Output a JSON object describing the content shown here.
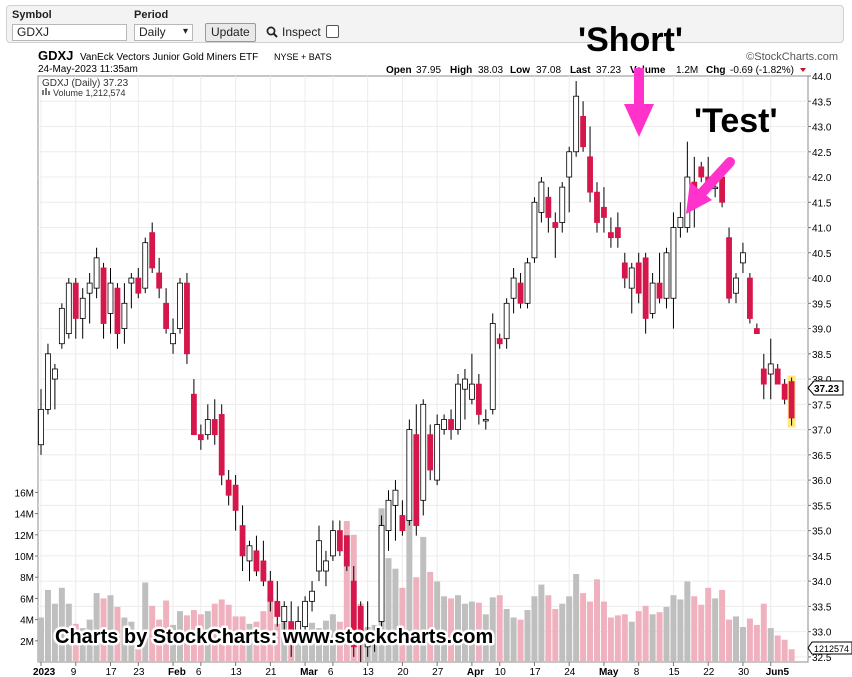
{
  "toolbar": {
    "symbol_label": "Symbol",
    "symbol_value": "GDXJ",
    "period_label": "Period",
    "period_value": "Daily",
    "update_label": "Update",
    "inspect_label": "Inspect"
  },
  "header": {
    "ticker": "GDXJ",
    "name": "VanEck Vectors Junior Gold Miners ETF",
    "exchange": "NYSE + BATS",
    "timestamp": "24-May-2023 11:35am",
    "brand": "©StockCharts.com",
    "open_label": "Open",
    "open": "37.95",
    "high_label": "High",
    "high": "38.03",
    "low_label": "Low",
    "low": "37.08",
    "last_label": "Last",
    "last": "37.23",
    "volume_label": "Volume",
    "volume": "1.2M",
    "chg_label": "Chg",
    "chg": "-0.69 (-1.82%)",
    "legend_price": "GDXJ (Daily) 37.23",
    "legend_volume": "Volume 1,212,574"
  },
  "annotations": {
    "short": "'Short'",
    "test": "'Test'",
    "credit": "Charts by StockCharts: www.stockcharts.com"
  },
  "colors": {
    "up": "#ffffff",
    "down": "#d6174b",
    "arrow": "#ff33cc",
    "vol_up": "#bfbfbf",
    "vol_down": "#f0b1bf",
    "last_highlight": "#ffe97a"
  },
  "chart_data": {
    "type": "candlestick",
    "y_axis": {
      "range": [
        32.3,
        44.0
      ],
      "ticks": [
        "44.0",
        "43.5",
        "43.0",
        "42.5",
        "42.0",
        "41.5",
        "41.0",
        "40.5",
        "40.0",
        "39.5",
        "39.0",
        "38.5",
        "38.0",
        "37.5",
        "37.0",
        "36.5",
        "36.0",
        "35.5",
        "35.0",
        "34.5",
        "34.0",
        "33.5",
        "33.0",
        "32.5"
      ],
      "last_price_label": "37.23",
      "position": "right"
    },
    "volume_axis": {
      "range": [
        0,
        17000000
      ],
      "ticks": [
        "16M",
        "14M",
        "12M",
        "10M",
        "8M",
        "6M",
        "4M",
        "2M"
      ],
      "last_volume_label": "1212574",
      "position": "left"
    },
    "x_axis_labels": [
      {
        "label": "2023",
        "i": 0
      },
      {
        "label": "9",
        "i": 5
      },
      {
        "label": "17",
        "i": 10
      },
      {
        "label": "23",
        "i": 14
      },
      {
        "label": "Feb",
        "i": 19
      },
      {
        "label": "6",
        "i": 23
      },
      {
        "label": "13",
        "i": 28
      },
      {
        "label": "21",
        "i": 33
      },
      {
        "label": "Mar",
        "i": 38
      },
      {
        "label": "6",
        "i": 42
      },
      {
        "label": "13",
        "i": 47
      },
      {
        "label": "20",
        "i": 52
      },
      {
        "label": "27",
        "i": 57
      },
      {
        "label": "Apr",
        "i": 62
      },
      {
        "label": "10",
        "i": 66
      },
      {
        "label": "17",
        "i": 71
      },
      {
        "label": "24",
        "i": 76
      },
      {
        "label": "May",
        "i": 81
      },
      {
        "label": "8",
        "i": 86
      },
      {
        "label": "15",
        "i": 91
      },
      {
        "label": "22",
        "i": 96
      },
      {
        "label": "30",
        "i": 101
      },
      {
        "label": "Jun5",
        "i": 105
      }
    ],
    "candles": [
      {
        "o": 36.7,
        "h": 37.8,
        "l": 36.5,
        "c": 37.4,
        "v": 4.2
      },
      {
        "o": 37.4,
        "h": 38.7,
        "l": 37.3,
        "c": 38.5,
        "v": 6.8
      },
      {
        "o": 38.0,
        "h": 38.3,
        "l": 37.4,
        "c": 38.2,
        "v": 5.5
      },
      {
        "o": 38.7,
        "h": 39.5,
        "l": 38.6,
        "c": 39.4,
        "v": 7.0
      },
      {
        "o": 38.9,
        "h": 40.0,
        "l": 38.8,
        "c": 39.9,
        "v": 5.5
      },
      {
        "o": 39.9,
        "h": 40.0,
        "l": 38.8,
        "c": 39.2,
        "v": 3.6
      },
      {
        "o": 39.2,
        "h": 39.8,
        "l": 38.8,
        "c": 39.6,
        "v": 3.2
      },
      {
        "o": 39.7,
        "h": 40.1,
        "l": 39.1,
        "c": 39.9,
        "v": 4.0
      },
      {
        "o": 39.8,
        "h": 40.6,
        "l": 39.6,
        "c": 40.4,
        "v": 6.5
      },
      {
        "o": 40.2,
        "h": 40.3,
        "l": 38.8,
        "c": 39.1,
        "v": 6.0
      },
      {
        "o": 39.3,
        "h": 40.2,
        "l": 38.9,
        "c": 39.9,
        "v": 6.3
      },
      {
        "o": 39.8,
        "h": 39.9,
        "l": 38.6,
        "c": 38.9,
        "v": 5.2
      },
      {
        "o": 39.0,
        "h": 39.9,
        "l": 38.7,
        "c": 39.5,
        "v": 4.2
      },
      {
        "o": 39.9,
        "h": 40.1,
        "l": 39.4,
        "c": 40.0,
        "v": 3.8
      },
      {
        "o": 40.0,
        "h": 40.2,
        "l": 39.6,
        "c": 39.7,
        "v": 3.0
      },
      {
        "o": 39.8,
        "h": 40.8,
        "l": 39.7,
        "c": 40.7,
        "v": 7.5
      },
      {
        "o": 40.9,
        "h": 41.1,
        "l": 40.1,
        "c": 40.2,
        "v": 5.3
      },
      {
        "o": 40.1,
        "h": 40.4,
        "l": 39.6,
        "c": 39.8,
        "v": 4.0
      },
      {
        "o": 39.5,
        "h": 39.8,
        "l": 38.9,
        "c": 39.0,
        "v": 5.8
      },
      {
        "o": 38.7,
        "h": 39.2,
        "l": 38.5,
        "c": 38.9,
        "v": 3.5
      },
      {
        "o": 39.0,
        "h": 40.0,
        "l": 38.9,
        "c": 39.9,
        "v": 4.8
      },
      {
        "o": 39.9,
        "h": 40.1,
        "l": 38.3,
        "c": 38.5,
        "v": 4.4
      },
      {
        "o": 37.7,
        "h": 38.0,
        "l": 36.9,
        "c": 36.9,
        "v": 4.9
      },
      {
        "o": 36.9,
        "h": 37.1,
        "l": 36.6,
        "c": 36.8,
        "v": 4.5
      },
      {
        "o": 36.9,
        "h": 37.5,
        "l": 36.8,
        "c": 37.2,
        "v": 4.8
      },
      {
        "o": 37.2,
        "h": 37.6,
        "l": 36.7,
        "c": 36.9,
        "v": 5.5
      },
      {
        "o": 37.3,
        "h": 37.5,
        "l": 35.9,
        "c": 36.1,
        "v": 5.9
      },
      {
        "o": 36.0,
        "h": 36.2,
        "l": 35.5,
        "c": 35.7,
        "v": 5.4
      },
      {
        "o": 35.9,
        "h": 36.1,
        "l": 35.0,
        "c": 35.4,
        "v": 4.3
      },
      {
        "o": 35.1,
        "h": 35.5,
        "l": 34.2,
        "c": 34.5,
        "v": 4.3
      },
      {
        "o": 34.4,
        "h": 34.8,
        "l": 34.0,
        "c": 34.7,
        "v": 3.6
      },
      {
        "o": 34.6,
        "h": 34.9,
        "l": 34.1,
        "c": 34.2,
        "v": 3.8
      },
      {
        "o": 34.4,
        "h": 34.8,
        "l": 33.9,
        "c": 34.0,
        "v": 4.8
      },
      {
        "o": 34.0,
        "h": 34.2,
        "l": 33.4,
        "c": 33.6,
        "v": 6.3
      },
      {
        "o": 33.6,
        "h": 34.0,
        "l": 33.1,
        "c": 33.3,
        "v": 3.6
      },
      {
        "o": 33.2,
        "h": 33.6,
        "l": 33.0,
        "c": 33.5,
        "v": 4.0
      },
      {
        "o": 33.2,
        "h": 33.6,
        "l": 32.5,
        "c": 33.0,
        "v": 2.6
      },
      {
        "o": 33.0,
        "h": 33.5,
        "l": 32.8,
        "c": 33.2,
        "v": 3.2
      },
      {
        "o": 33.1,
        "h": 33.7,
        "l": 32.9,
        "c": 33.6,
        "v": 2.9
      },
      {
        "o": 33.6,
        "h": 34.0,
        "l": 33.4,
        "c": 33.8,
        "v": 3.7
      },
      {
        "o": 34.2,
        "h": 35.1,
        "l": 34.0,
        "c": 34.8,
        "v": 3.2
      },
      {
        "o": 34.2,
        "h": 34.6,
        "l": 33.9,
        "c": 34.4,
        "v": 3.9
      },
      {
        "o": 34.5,
        "h": 35.2,
        "l": 34.4,
        "c": 35.0,
        "v": 4.5
      },
      {
        "o": 35.0,
        "h": 35.2,
        "l": 34.5,
        "c": 34.6,
        "v": 3.8
      },
      {
        "o": 34.9,
        "h": 34.9,
        "l": 34.2,
        "c": 34.3,
        "v": 13.3
      },
      {
        "o": 34.0,
        "h": 34.3,
        "l": 32.5,
        "c": 32.7,
        "v": 12.0
      },
      {
        "o": 33.5,
        "h": 33.6,
        "l": 32.4,
        "c": 32.8,
        "v": 5.5
      },
      {
        "o": 32.7,
        "h": 33.6,
        "l": 32.5,
        "c": 32.9,
        "v": 3.3
      },
      {
        "o": 32.9,
        "h": 33.1,
        "l": 32.6,
        "c": 33.0,
        "v": 3.5
      },
      {
        "o": 33.2,
        "h": 35.3,
        "l": 33.1,
        "c": 35.1,
        "v": 14.5
      },
      {
        "o": 35.0,
        "h": 35.8,
        "l": 34.6,
        "c": 35.6,
        "v": 9.8
      },
      {
        "o": 35.5,
        "h": 36.0,
        "l": 34.8,
        "c": 35.8,
        "v": 8.8
      },
      {
        "o": 35.3,
        "h": 35.6,
        "l": 34.9,
        "c": 35.0,
        "v": 7.0
      },
      {
        "o": 35.2,
        "h": 37.2,
        "l": 35.1,
        "c": 37.0,
        "v": 13.7
      },
      {
        "o": 36.9,
        "h": 37.5,
        "l": 34.9,
        "c": 35.1,
        "v": 8.0
      },
      {
        "o": 35.6,
        "h": 37.6,
        "l": 35.3,
        "c": 37.5,
        "v": 11.8
      },
      {
        "o": 36.9,
        "h": 37.1,
        "l": 36.0,
        "c": 36.2,
        "v": 8.5
      },
      {
        "o": 36.0,
        "h": 37.3,
        "l": 35.9,
        "c": 37.1,
        "v": 7.6
      },
      {
        "o": 37.0,
        "h": 37.3,
        "l": 36.9,
        "c": 37.2,
        "v": 6.2
      },
      {
        "o": 37.2,
        "h": 37.4,
        "l": 36.8,
        "c": 37.0,
        "v": 6.0
      },
      {
        "o": 37.0,
        "h": 38.1,
        "l": 36.9,
        "c": 37.9,
        "v": 6.3
      },
      {
        "o": 37.8,
        "h": 38.2,
        "l": 37.2,
        "c": 38.0,
        "v": 5.5
      },
      {
        "o": 37.6,
        "h": 38.5,
        "l": 37.5,
        "c": 37.9,
        "v": 5.7
      },
      {
        "o": 37.9,
        "h": 38.1,
        "l": 37.1,
        "c": 37.3,
        "v": 5.6
      },
      {
        "o": 37.2,
        "h": 37.4,
        "l": 37.0,
        "c": 37.2,
        "v": 4.5
      },
      {
        "o": 37.4,
        "h": 39.3,
        "l": 37.3,
        "c": 39.1,
        "v": 6.1
      },
      {
        "o": 38.8,
        "h": 38.9,
        "l": 38.6,
        "c": 38.7,
        "v": 6.3
      },
      {
        "o": 38.8,
        "h": 39.6,
        "l": 38.6,
        "c": 39.5,
        "v": 5.0
      },
      {
        "o": 39.6,
        "h": 40.2,
        "l": 39.3,
        "c": 40.0,
        "v": 4.2
      },
      {
        "o": 39.9,
        "h": 40.1,
        "l": 39.4,
        "c": 39.5,
        "v": 4.0
      },
      {
        "o": 39.5,
        "h": 40.4,
        "l": 39.4,
        "c": 40.3,
        "v": 4.9
      },
      {
        "o": 40.4,
        "h": 41.6,
        "l": 40.3,
        "c": 41.5,
        "v": 6.2
      },
      {
        "o": 41.3,
        "h": 42.0,
        "l": 41.1,
        "c": 41.9,
        "v": 7.3
      },
      {
        "o": 41.6,
        "h": 41.8,
        "l": 40.9,
        "c": 41.2,
        "v": 6.3
      },
      {
        "o": 41.1,
        "h": 41.3,
        "l": 40.4,
        "c": 41.0,
        "v": 5.0
      },
      {
        "o": 41.1,
        "h": 41.9,
        "l": 40.9,
        "c": 41.8,
        "v": 5.5
      },
      {
        "o": 42.0,
        "h": 42.6,
        "l": 41.3,
        "c": 42.5,
        "v": 6.2
      },
      {
        "o": 42.5,
        "h": 43.9,
        "l": 42.4,
        "c": 43.6,
        "v": 8.3
      },
      {
        "o": 43.2,
        "h": 43.5,
        "l": 42.5,
        "c": 42.6,
        "v": 6.5
      },
      {
        "o": 42.4,
        "h": 43.0,
        "l": 41.5,
        "c": 41.7,
        "v": 5.7
      },
      {
        "o": 41.7,
        "h": 41.9,
        "l": 40.9,
        "c": 41.1,
        "v": 7.8
      },
      {
        "o": 41.4,
        "h": 41.8,
        "l": 40.9,
        "c": 41.2,
        "v": 5.7
      },
      {
        "o": 40.9,
        "h": 41.2,
        "l": 40.6,
        "c": 40.8,
        "v": 4.2
      },
      {
        "o": 41.0,
        "h": 41.3,
        "l": 40.6,
        "c": 40.8,
        "v": 4.4
      },
      {
        "o": 40.3,
        "h": 40.5,
        "l": 39.8,
        "c": 40.0,
        "v": 4.5
      },
      {
        "o": 39.8,
        "h": 40.3,
        "l": 39.3,
        "c": 40.2,
        "v": 3.8
      },
      {
        "o": 40.3,
        "h": 40.5,
        "l": 39.5,
        "c": 39.7,
        "v": 4.8
      },
      {
        "o": 40.4,
        "h": 40.5,
        "l": 38.9,
        "c": 39.2,
        "v": 5.3
      },
      {
        "o": 39.3,
        "h": 40.1,
        "l": 39.2,
        "c": 39.9,
        "v": 4.5
      },
      {
        "o": 39.9,
        "h": 40.5,
        "l": 39.5,
        "c": 39.6,
        "v": 4.7
      },
      {
        "o": 39.6,
        "h": 40.6,
        "l": 39.4,
        "c": 40.5,
        "v": 5.2
      },
      {
        "o": 39.6,
        "h": 41.3,
        "l": 39.0,
        "c": 41.0,
        "v": 6.3
      },
      {
        "o": 41.0,
        "h": 41.5,
        "l": 40.8,
        "c": 41.2,
        "v": 5.9
      },
      {
        "o": 41.0,
        "h": 42.7,
        "l": 40.9,
        "c": 42.0,
        "v": 7.6
      },
      {
        "o": 41.9,
        "h": 42.4,
        "l": 41.0,
        "c": 41.5,
        "v": 6.2
      },
      {
        "o": 42.2,
        "h": 42.3,
        "l": 41.9,
        "c": 42.0,
        "v": 5.4
      },
      {
        "o": 42.0,
        "h": 42.4,
        "l": 41.8,
        "c": 41.9,
        "v": 7.0
      },
      {
        "o": 41.8,
        "h": 41.9,
        "l": 41.6,
        "c": 41.8,
        "v": 6.0
      },
      {
        "o": 42.0,
        "h": 42.1,
        "l": 41.4,
        "c": 41.5,
        "v": 6.8
      },
      {
        "o": 40.8,
        "h": 41.0,
        "l": 39.5,
        "c": 39.6,
        "v": 4.0
      },
      {
        "o": 39.7,
        "h": 40.1,
        "l": 39.5,
        "c": 40.0,
        "v": 4.3
      },
      {
        "o": 40.3,
        "h": 40.7,
        "l": 40.1,
        "c": 40.5,
        "v": 3.3
      },
      {
        "o": 40.0,
        "h": 40.1,
        "l": 39.1,
        "c": 39.2,
        "v": 4.1
      },
      {
        "o": 39.0,
        "h": 39.1,
        "l": 38.9,
        "c": 38.9,
        "v": 3.5
      },
      {
        "o": 38.2,
        "h": 38.5,
        "l": 37.6,
        "c": 37.9,
        "v": 5.5
      },
      {
        "o": 38.1,
        "h": 38.8,
        "l": 37.6,
        "c": 38.3,
        "v": 3.2
      },
      {
        "o": 38.2,
        "h": 38.3,
        "l": 37.9,
        "c": 37.9,
        "v": 2.5
      },
      {
        "o": 37.9,
        "h": 38.0,
        "l": 37.5,
        "c": 37.6,
        "v": 2.1
      },
      {
        "o": 37.95,
        "h": 38.03,
        "l": 37.08,
        "c": 37.23,
        "v": 1.2
      }
    ]
  }
}
